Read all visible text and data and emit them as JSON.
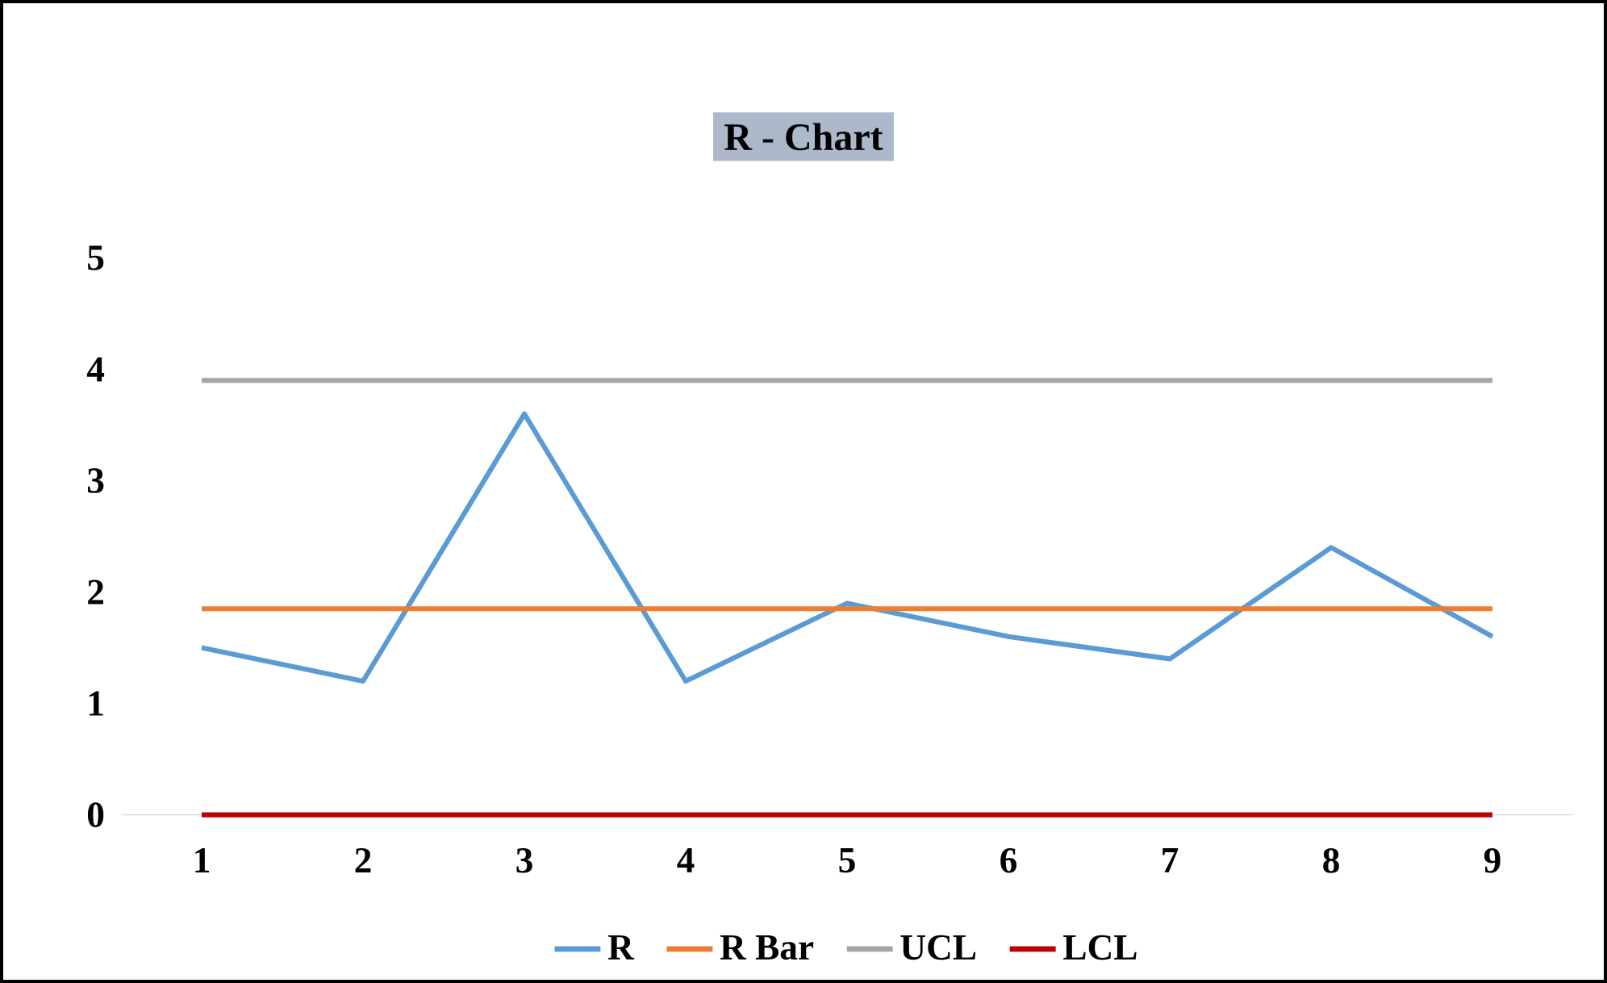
{
  "chart_data": {
    "type": "line",
    "title": "R - Chart",
    "categories": [
      "1",
      "2",
      "3",
      "4",
      "5",
      "6",
      "7",
      "8",
      "9"
    ],
    "series": [
      {
        "name": "R",
        "color": "#5b9bd5",
        "values": [
          1.5,
          1.2,
          3.6,
          1.2,
          1.9,
          1.6,
          1.4,
          2.4,
          1.6
        ]
      },
      {
        "name": "R Bar",
        "color": "#ed7d31",
        "values": [
          1.85,
          1.85,
          1.85,
          1.85,
          1.85,
          1.85,
          1.85,
          1.85,
          1.85
        ]
      },
      {
        "name": "UCL",
        "color": "#a5a5a5",
        "values": [
          3.9,
          3.9,
          3.9,
          3.9,
          3.9,
          3.9,
          3.9,
          3.9,
          3.9
        ]
      },
      {
        "name": "LCL",
        "color": "#c00000",
        "values": [
          0,
          0,
          0,
          0,
          0,
          0,
          0,
          0,
          0
        ]
      }
    ],
    "ylim": [
      0,
      5
    ],
    "yticks": [
      0,
      1,
      2,
      3,
      4,
      5
    ],
    "legend": "bottom"
  }
}
